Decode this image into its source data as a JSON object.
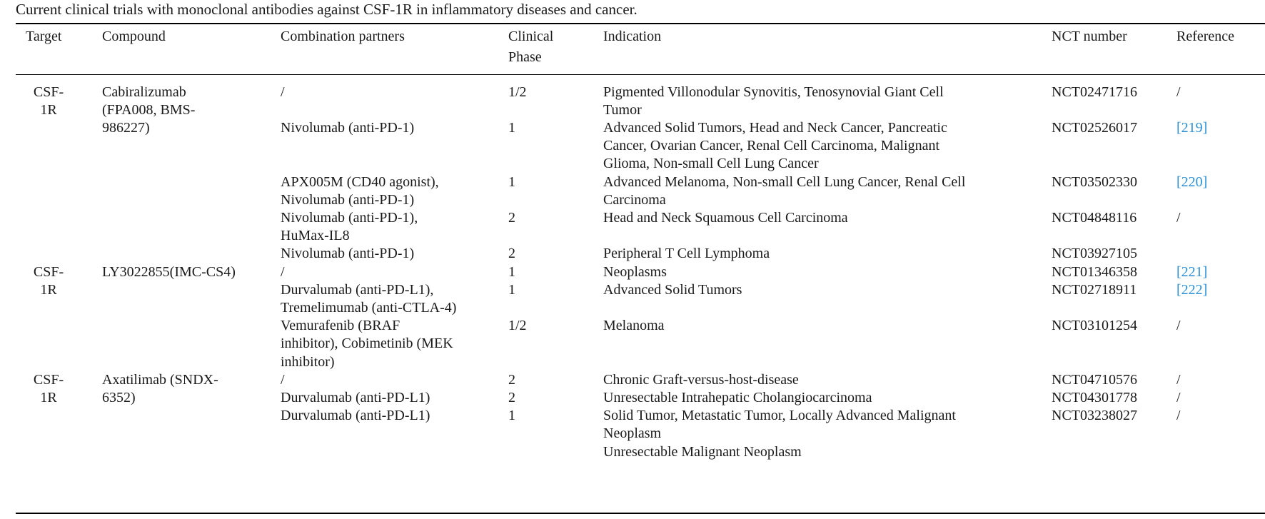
{
  "caption": "Current clinical trials with monoclonal antibodies against CSF-1R in inflammatory diseases and cancer.",
  "headers": {
    "target": "Target",
    "compound": "Compound",
    "combination": "Combination partners",
    "phase_line1": "Clinical",
    "phase_line2": "Phase",
    "indication": "Indication",
    "nct": "NCT number",
    "reference": "Reference"
  },
  "groups": [
    {
      "target_line1": "CSF-",
      "target_line2": "1R",
      "compound_lines": [
        "Cabiralizumab",
        "(FPA008, BMS-",
        "986227)"
      ],
      "rows": [
        {
          "combination_lines": [
            "/"
          ],
          "phase": "1/2",
          "indication_lines": [
            "Pigmented Villonodular Synovitis, Tenosynovial Giant Cell",
            "Tumor"
          ],
          "nct": "NCT02471716",
          "reference": "/"
        },
        {
          "combination_lines": [
            "Nivolumab (anti-PD-1)"
          ],
          "phase": "1",
          "indication_lines": [
            "Advanced Solid Tumors, Head and Neck Cancer, Pancreatic",
            "Cancer, Ovarian Cancer, Renal Cell Carcinoma, Malignant",
            "Glioma, Non-small Cell Lung Cancer"
          ],
          "nct": "NCT02526017",
          "reference": "[219]"
        },
        {
          "combination_lines": [
            "APX005M (CD40 agonist),",
            "Nivolumab (anti-PD-1)"
          ],
          "phase": "1",
          "indication_lines": [
            "Advanced Melanoma, Non-small Cell Lung Cancer, Renal Cell",
            "Carcinoma"
          ],
          "nct": "NCT03502330",
          "reference": "[220]"
        },
        {
          "combination_lines": [
            "Nivolumab (anti-PD-1),",
            "HuMax-IL8"
          ],
          "phase": "2",
          "indication_lines": [
            "Head and Neck Squamous Cell Carcinoma"
          ],
          "nct": "NCT04848116",
          "reference": "/"
        },
        {
          "combination_lines": [
            "Nivolumab (anti-PD-1)"
          ],
          "phase": "2",
          "indication_lines": [
            "Peripheral T Cell Lymphoma"
          ],
          "nct": "NCT03927105",
          "reference": ""
        }
      ]
    },
    {
      "target_line1": "CSF-",
      "target_line2": "1R",
      "compound_lines": [
        "LY3022855(IMC-CS4)"
      ],
      "rows": [
        {
          "combination_lines": [
            "/"
          ],
          "phase": "1",
          "indication_lines": [
            "Neoplasms"
          ],
          "nct": "NCT01346358",
          "reference": "[221]"
        },
        {
          "combination_lines": [
            "Durvalumab (anti-PD-L1),",
            "Tremelimumab (anti-CTLA-4)"
          ],
          "phase": "1",
          "indication_lines": [
            "Advanced Solid Tumors"
          ],
          "nct": "NCT02718911",
          "reference": "[222]"
        },
        {
          "combination_lines": [
            "Vemurafenib (BRAF",
            "inhibitor), Cobimetinib (MEK",
            "inhibitor)"
          ],
          "phase": "1/2",
          "indication_lines": [
            "Melanoma"
          ],
          "nct": "NCT03101254",
          "reference": "/"
        }
      ]
    },
    {
      "target_line1": "CSF-",
      "target_line2": "1R",
      "compound_lines": [
        "Axatilimab (SNDX-",
        "6352)"
      ],
      "rows": [
        {
          "combination_lines": [
            "/"
          ],
          "phase": "2",
          "indication_lines": [
            "Chronic Graft-versus-host-disease"
          ],
          "nct": "NCT04710576",
          "reference": "/"
        },
        {
          "combination_lines": [
            "Durvalumab (anti-PD-L1)"
          ],
          "phase": "2",
          "indication_lines": [
            "Unresectable Intrahepatic Cholangiocarcinoma"
          ],
          "nct": "NCT04301778",
          "reference": "/"
        },
        {
          "combination_lines": [
            "Durvalumab (anti-PD-L1)"
          ],
          "phase": "1",
          "indication_lines": [
            "Solid Tumor, Metastatic Tumor, Locally Advanced Malignant",
            "Neoplasm",
            "Unresectable Malignant Neoplasm"
          ],
          "nct": "NCT03238027",
          "reference": "/"
        }
      ]
    }
  ],
  "colors": {
    "text": "#1a1a1a",
    "reference_link": "#2b8fd6",
    "rule": "#000000"
  }
}
